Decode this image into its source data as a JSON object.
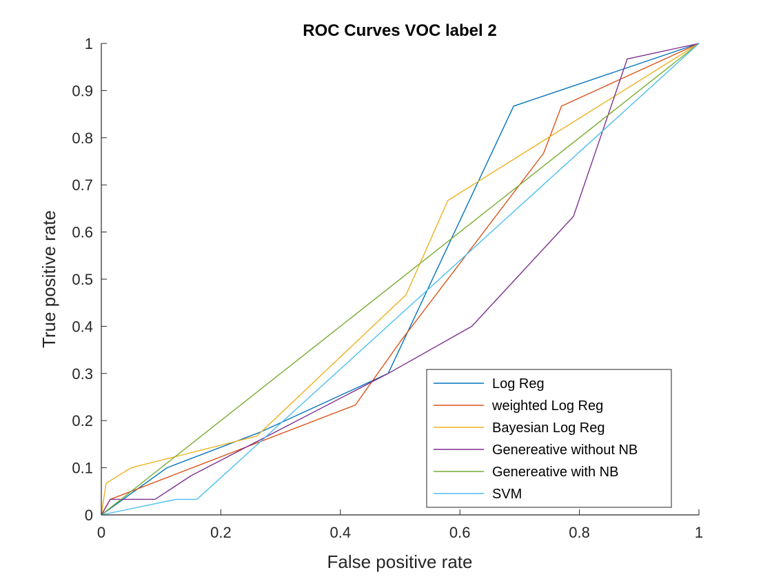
{
  "chart_data": {
    "type": "line",
    "title": "ROC Curves VOC label 2",
    "xlabel": "False positive rate",
    "ylabel": "True positive rate",
    "xlim": [
      0,
      1
    ],
    "ylim": [
      0,
      1
    ],
    "xticks": [
      "0",
      "0.2",
      "0.4",
      "0.6",
      "0.8",
      "1"
    ],
    "yticks": [
      "0",
      "0.1",
      "0.2",
      "0.3",
      "0.4",
      "0.5",
      "0.6",
      "0.7",
      "0.8",
      "0.9",
      "1"
    ],
    "grid": false,
    "legend_position": "bottom-right",
    "series": [
      {
        "name": "Log Reg",
        "color": "#0072BD",
        "points": [
          [
            0,
            0
          ],
          [
            0.11,
            0.1
          ],
          [
            0.265,
            0.175
          ],
          [
            0.48,
            0.3
          ],
          [
            0.69,
            0.867
          ],
          [
            1,
            1
          ]
        ]
      },
      {
        "name": "weighted Log Reg",
        "color": "#D95319",
        "points": [
          [
            0,
            0
          ],
          [
            0.015,
            0.033
          ],
          [
            0.05,
            0.05
          ],
          [
            0.425,
            0.233
          ],
          [
            0.5,
            0.367
          ],
          [
            0.74,
            0.767
          ],
          [
            0.77,
            0.867
          ],
          [
            1,
            1
          ]
        ]
      },
      {
        "name": "Bayesian Log Reg",
        "color": "#EDB120",
        "points": [
          [
            0,
            0
          ],
          [
            0.008,
            0.067
          ],
          [
            0.05,
            0.1
          ],
          [
            0.26,
            0.167
          ],
          [
            0.51,
            0.467
          ],
          [
            0.58,
            0.667
          ],
          [
            1,
            1
          ]
        ]
      },
      {
        "name": "Genereative without NB",
        "color": "#7E2F8E",
        "points": [
          [
            0,
            0
          ],
          [
            0.015,
            0.033
          ],
          [
            0.05,
            0.033
          ],
          [
            0.09,
            0.033
          ],
          [
            0.15,
            0.083
          ],
          [
            0.48,
            0.3
          ],
          [
            0.62,
            0.4
          ],
          [
            0.79,
            0.633
          ],
          [
            0.88,
            0.967
          ],
          [
            1,
            1
          ]
        ]
      },
      {
        "name": "Genereative with NB",
        "color": "#77AC30",
        "points": [
          [
            0,
            0
          ],
          [
            1,
            1
          ]
        ]
      },
      {
        "name": "SVM",
        "color": "#4DBEEE",
        "points": [
          [
            0,
            0
          ],
          [
            0.125,
            0.033
          ],
          [
            0.16,
            0.033
          ],
          [
            1,
            1
          ]
        ]
      }
    ]
  }
}
